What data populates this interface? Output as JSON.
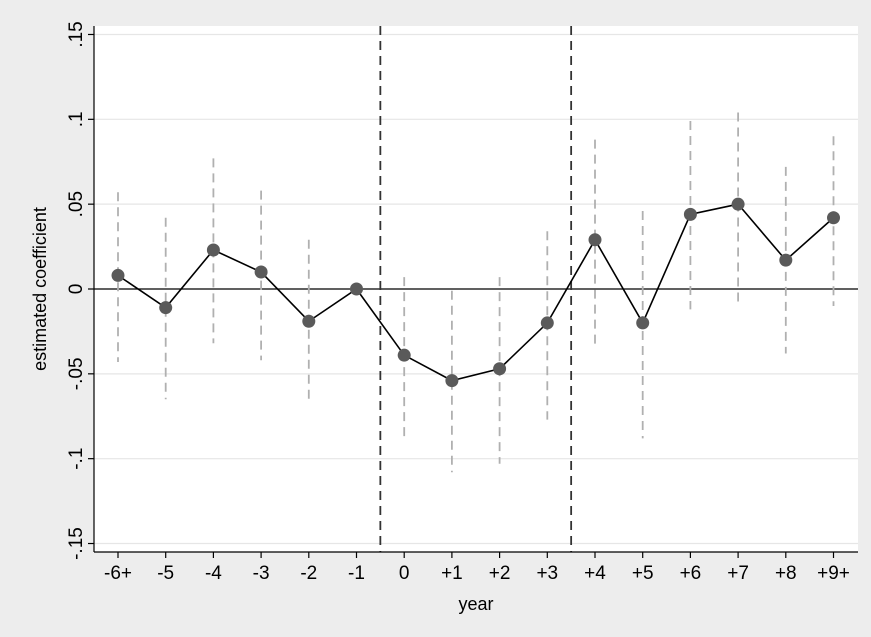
{
  "chart_data": {
    "type": "line",
    "title": "",
    "xlabel": "year",
    "ylabel": "estimated coefficient",
    "categories": [
      "-6+",
      "-5",
      "-4",
      "-3",
      "-2",
      "-1",
      "0",
      "+1",
      "+2",
      "+3",
      "+4",
      "+5",
      "+6",
      "+7",
      "+8",
      "+9+"
    ],
    "ylim": [
      -0.155,
      0.155
    ],
    "yticks": [
      {
        "value": -0.15,
        "label": "-.15"
      },
      {
        "value": -0.1,
        "label": "-.1"
      },
      {
        "value": -0.05,
        "label": "-.05"
      },
      {
        "value": 0,
        "label": "0"
      },
      {
        "value": 0.05,
        "label": ".05"
      },
      {
        "value": 0.1,
        "label": ".1"
      },
      {
        "value": 0.15,
        "label": ".15"
      }
    ],
    "grid": true,
    "series": [
      {
        "values": [
          0.008,
          -0.011,
          0.023,
          0.01,
          -0.019,
          0.0,
          -0.039,
          -0.054,
          -0.047,
          -0.02,
          0.029,
          -0.02,
          0.044,
          0.05,
          0.017,
          0.042
        ],
        "ci_low": [
          -0.043,
          -0.065,
          -0.032,
          -0.042,
          -0.068,
          null,
          -0.087,
          -0.108,
          -0.103,
          -0.077,
          -0.035,
          -0.088,
          -0.012,
          -0.008,
          -0.038,
          -0.01
        ],
        "ci_high": [
          0.057,
          0.042,
          0.077,
          0.058,
          0.029,
          null,
          0.007,
          -0.001,
          0.007,
          0.034,
          0.088,
          0.046,
          0.099,
          0.104,
          0.072,
          0.09
        ]
      }
    ],
    "reference_lines": {
      "horizontal": [
        0
      ],
      "vertical_between": [
        [
          5,
          6
        ],
        [
          9,
          10
        ]
      ]
    },
    "colors": {
      "background": "#ededed",
      "plot_area": "#ffffff",
      "grid": "#e6e6e6",
      "marker": "#5a5a5a",
      "line": "#000000",
      "ci": "#b0b0b0",
      "vline": "#333333"
    }
  }
}
